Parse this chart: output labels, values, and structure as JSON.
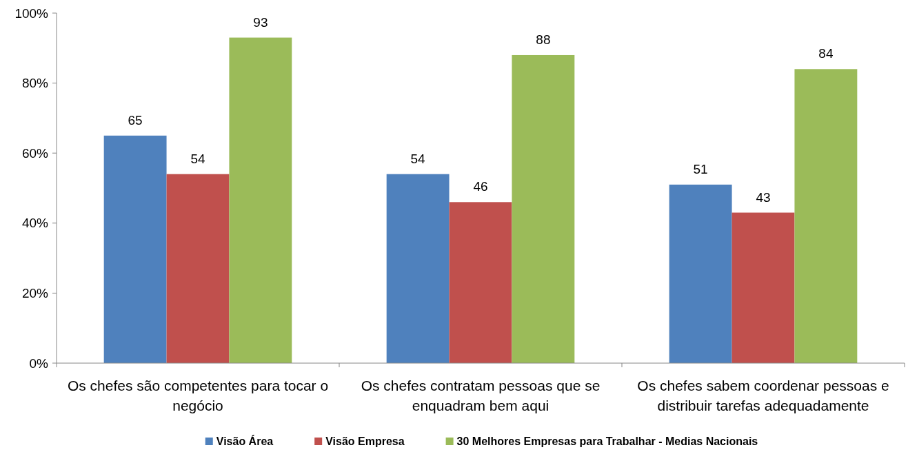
{
  "chart_data": {
    "type": "bar",
    "categories": [
      "Os chefes são competentes para tocar o negócio",
      "Os chefes contratam pessoas que se enquadram bem aqui",
      "Os chefes sabem coordenar pessoas e distribuir tarefas adequadamente"
    ],
    "series": [
      {
        "name": "Visão Área",
        "color": "#4f81bd",
        "values": [
          65,
          54,
          51
        ]
      },
      {
        "name": "Visão Empresa",
        "color": "#c0504d",
        "values": [
          54,
          46,
          43
        ]
      },
      {
        "name": "30 Melhores Empresas para Trabalhar - Medias Nacionais",
        "color": "#9bbb59",
        "values": [
          93,
          88,
          84
        ]
      }
    ],
    "ylim": [
      0,
      100
    ],
    "yticks": [
      {
        "value": 0,
        "label": "0%"
      },
      {
        "value": 20,
        "label": "20%"
      },
      {
        "value": 40,
        "label": "40%"
      },
      {
        "value": 60,
        "label": "60%"
      },
      {
        "value": 80,
        "label": "80%"
      },
      {
        "value": 100,
        "label": "100%"
      }
    ],
    "data_labels": true,
    "legend": "bottom",
    "grid": false
  }
}
